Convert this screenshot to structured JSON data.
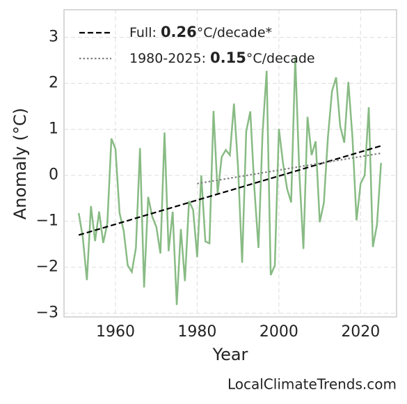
{
  "chart_data": {
    "type": "line",
    "xlabel": "Year",
    "ylabel": "Anomaly (°C)",
    "watermark": "LocalClimateTrends.com",
    "xlim": [
      1947.4,
      2028.8
    ],
    "ylim": [
      -3.08,
      3.6
    ],
    "xticks": [
      1960,
      1980,
      2000,
      2020
    ],
    "yticks": [
      {
        "value": -3,
        "label": "−3"
      },
      {
        "value": -2,
        "label": "−2"
      },
      {
        "value": -1,
        "label": "−1"
      },
      0,
      1,
      2,
      3
    ],
    "grid": true,
    "legend": "upper left",
    "series": [
      {
        "color": "#88bb84",
        "style": "solid",
        "x": [
          1951,
          1952,
          1953,
          1954,
          1955,
          1956,
          1957,
          1958,
          1959,
          1960,
          1961,
          1962,
          1963,
          1964,
          1965,
          1966,
          1967,
          1968,
          1969,
          1970,
          1971,
          1972,
          1973,
          1974,
          1975,
          1976,
          1977,
          1978,
          1979,
          1980,
          1981,
          1982,
          1983,
          1984,
          1985,
          1986,
          1987,
          1988,
          1989,
          1990,
          1991,
          1992,
          1993,
          1994,
          1995,
          1996,
          1997,
          1998,
          1999,
          2000,
          2001,
          2002,
          2003,
          2004,
          2005,
          2006,
          2007,
          2008,
          2009,
          2010,
          2011,
          2012,
          2013,
          2014,
          2015,
          2016,
          2017,
          2018,
          2019,
          2020,
          2021,
          2022,
          2023,
          2024,
          2025
        ],
        "values": [
          -0.82,
          -1.35,
          -2.28,
          -0.67,
          -1.43,
          -0.79,
          -1.47,
          -1.05,
          0.8,
          0.57,
          -0.82,
          -1.2,
          -1.96,
          -2.1,
          -1.58,
          0.59,
          -2.44,
          -0.47,
          -0.9,
          -1.12,
          -1.7,
          0.93,
          -1.65,
          -0.79,
          -2.82,
          -1.17,
          -2.3,
          -0.56,
          -0.75,
          -1.78,
          0.0,
          -1.44,
          -1.48,
          1.4,
          -0.4,
          0.4,
          0.55,
          0.44,
          1.56,
          0.17,
          -1.9,
          0.95,
          1.39,
          -0.29,
          -1.58,
          0.92,
          2.27,
          -2.17,
          -1.96,
          1.01,
          0.27,
          -0.29,
          -0.59,
          2.56,
          0.06,
          -1.6,
          1.27,
          0.44,
          0.74,
          -1.02,
          -0.6,
          0.83,
          1.83,
          2.13,
          1.07,
          0.71,
          2.03,
          0.83,
          -0.98,
          -0.18,
          0.0,
          1.48,
          -1.56,
          -1.08,
          0.27
        ]
      },
      {
        "name_prefix": "Full: ",
        "rate": 0.26,
        "name_suffix": "°C/decade*",
        "color": "#000000",
        "style": "dashed",
        "x": [
          1951,
          2025
        ],
        "values": [
          -1.3,
          0.64
        ]
      },
      {
        "name_prefix": "1980-2025: ",
        "rate": 0.15,
        "name_suffix": "°C/decade",
        "color": "#808080",
        "style": "dotted",
        "x": [
          1980,
          2025
        ],
        "values": [
          -0.18,
          0.48
        ]
      }
    ]
  }
}
